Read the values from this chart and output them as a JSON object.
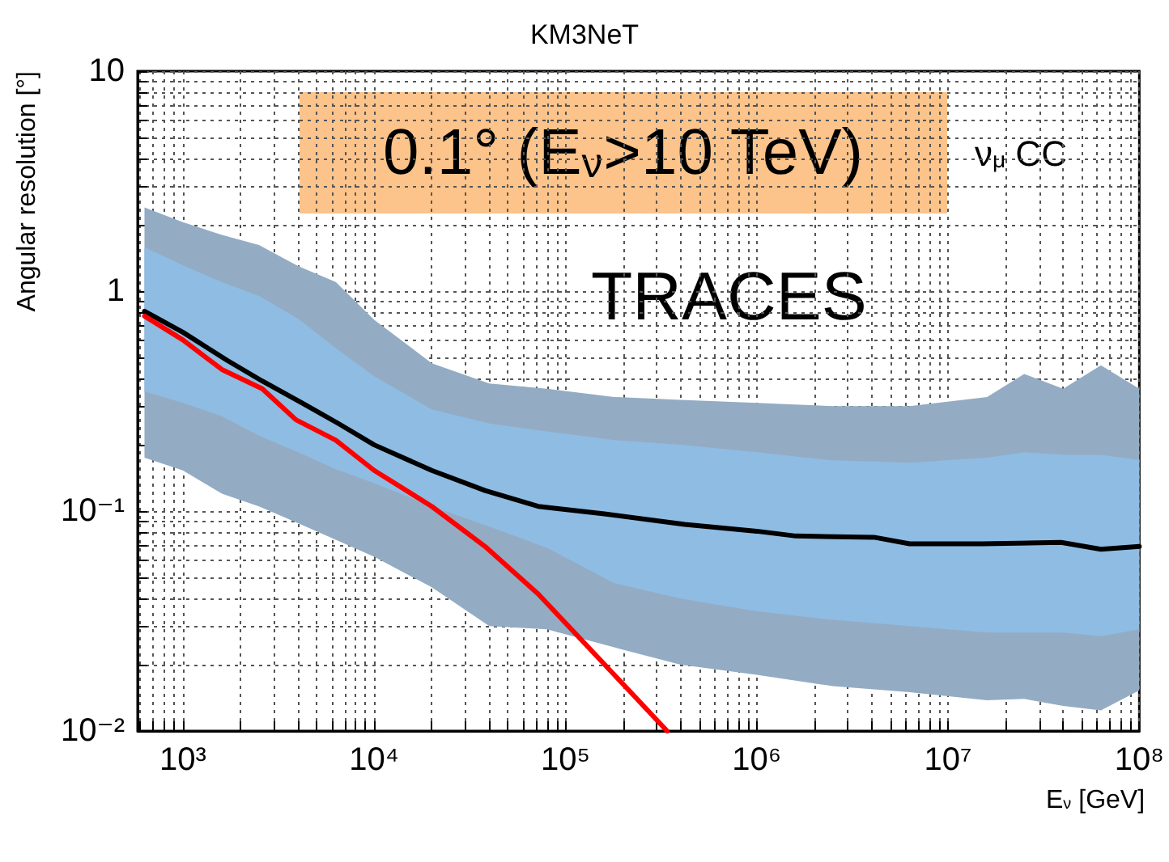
{
  "chart_data": {
    "type": "line",
    "title": "KM3NeT",
    "xlabel": "E$_{ν}$ [GeV]",
    "ylabel": "Angular resolution [°]",
    "log": "xy",
    "grid": true,
    "annotations": [
      "0.1° (E$_{ν}$>10 TeV)",
      "ν$_{μ}$ CC",
      "TRACES"
    ],
    "xlim": [
      580,
      100000000
    ],
    "ylim": [
      0.01,
      10
    ],
    "xticks": [
      {
        "value": 600,
        "label": null
      },
      {
        "value": 700,
        "label": null
      },
      {
        "value": 800,
        "label": null
      },
      {
        "value": 900,
        "label": null
      },
      {
        "value": 1000,
        "label": "10³"
      },
      {
        "value": 2000,
        "label": null
      },
      {
        "value": 3000,
        "label": null
      },
      {
        "value": 4000,
        "label": null
      },
      {
        "value": 5000,
        "label": null
      },
      {
        "value": 6000,
        "label": null
      },
      {
        "value": 7000,
        "label": null
      },
      {
        "value": 8000,
        "label": null
      },
      {
        "value": 9000,
        "label": null
      },
      {
        "value": 10000,
        "label": "10⁴"
      },
      {
        "value": 20000,
        "label": null
      },
      {
        "value": 30000,
        "label": null
      },
      {
        "value": 40000,
        "label": null
      },
      {
        "value": 50000,
        "label": null
      },
      {
        "value": 60000,
        "label": null
      },
      {
        "value": 70000,
        "label": null
      },
      {
        "value": 80000,
        "label": null
      },
      {
        "value": 90000,
        "label": null
      },
      {
        "value": 100000,
        "label": "10⁵"
      },
      {
        "value": 200000,
        "label": null
      },
      {
        "value": 300000,
        "label": null
      },
      {
        "value": 400000,
        "label": null
      },
      {
        "value": 500000,
        "label": null
      },
      {
        "value": 600000,
        "label": null
      },
      {
        "value": 700000,
        "label": null
      },
      {
        "value": 800000,
        "label": null
      },
      {
        "value": 900000,
        "label": null
      },
      {
        "value": 1000000,
        "label": "10⁶"
      },
      {
        "value": 2000000,
        "label": null
      },
      {
        "value": 3000000,
        "label": null
      },
      {
        "value": 4000000,
        "label": null
      },
      {
        "value": 5000000,
        "label": null
      },
      {
        "value": 6000000,
        "label": null
      },
      {
        "value": 7000000,
        "label": null
      },
      {
        "value": 8000000,
        "label": null
      },
      {
        "value": 9000000,
        "label": null
      },
      {
        "value": 10000000,
        "label": "10⁷"
      },
      {
        "value": 20000000,
        "label": null
      },
      {
        "value": 30000000,
        "label": null
      },
      {
        "value": 40000000,
        "label": null
      },
      {
        "value": 50000000,
        "label": null
      },
      {
        "value": 60000000,
        "label": null
      },
      {
        "value": 70000000,
        "label": null
      },
      {
        "value": 80000000,
        "label": null
      },
      {
        "value": 90000000,
        "label": null
      },
      {
        "value": 100000000,
        "label": "10⁸"
      }
    ],
    "yticks": [
      {
        "value": 0.01,
        "label": "10⁻²"
      },
      {
        "value": 0.02,
        "label": null
      },
      {
        "value": 0.03,
        "label": null
      },
      {
        "value": 0.04,
        "label": null
      },
      {
        "value": 0.05,
        "label": null
      },
      {
        "value": 0.06,
        "label": null
      },
      {
        "value": 0.07,
        "label": null
      },
      {
        "value": 0.08,
        "label": null
      },
      {
        "value": 0.09,
        "label": null
      },
      {
        "value": 0.1,
        "label": "10⁻¹"
      },
      {
        "value": 0.2,
        "label": null
      },
      {
        "value": 0.3,
        "label": null
      },
      {
        "value": 0.4,
        "label": null
      },
      {
        "value": 0.5,
        "label": null
      },
      {
        "value": 0.6,
        "label": null
      },
      {
        "value": 0.7,
        "label": null
      },
      {
        "value": 0.8,
        "label": null
      },
      {
        "value": 0.9,
        "label": null
      },
      1,
      {
        "value": 2,
        "label": null
      },
      {
        "value": 3,
        "label": null
      },
      {
        "value": 4,
        "label": null
      },
      {
        "value": 5,
        "label": null
      },
      {
        "value": 6,
        "label": null
      },
      {
        "value": 7,
        "label": null
      },
      {
        "value": 8,
        "label": null
      },
      {
        "value": 9,
        "label": null
      },
      10
    ],
    "series": [
      {
        "type": "area",
        "color": "#93acc4",
        "x": [
          630,
          1000,
          1600,
          2500,
          4000,
          6300,
          10000,
          20000,
          40000,
          80000,
          180000,
          400000,
          1000000,
          2500000,
          6300000,
          16000000,
          25000000,
          40000000,
          63000000,
          100000000
        ],
        "values": [
          null,
          null,
          null,
          null,
          null,
          null,
          null,
          null,
          null,
          null,
          null,
          null,
          null,
          null,
          null,
          null,
          null,
          null,
          null,
          null
        ],
        "lower": [
          0.175,
          0.153,
          0.12,
          0.105,
          0.088,
          0.074,
          0.062,
          0.045,
          0.03,
          0.029,
          0.024,
          0.02,
          0.018,
          0.016,
          0.015,
          0.0138,
          0.014,
          0.013,
          0.0124,
          0.0153
        ],
        "upper": [
          2.4,
          2.06,
          1.8,
          1.62,
          1.3,
          1.1,
          0.74,
          0.47,
          0.38,
          0.36,
          0.33,
          0.32,
          0.31,
          0.3,
          0.3,
          0.33,
          0.42,
          0.36,
          0.46,
          0.36
        ]
      },
      {
        "type": "area",
        "color": "#8fbce2",
        "x": [
          630,
          1000,
          1600,
          2500,
          4000,
          6300,
          10000,
          20000,
          40000,
          80000,
          180000,
          400000,
          1000000,
          2500000,
          6300000,
          16000000,
          25000000,
          40000000,
          63000000,
          100000000
        ],
        "values": [
          null,
          null,
          null,
          null,
          null,
          null,
          null,
          null,
          null,
          null,
          null,
          null,
          null,
          null,
          null,
          null,
          null,
          null,
          null,
          null
        ],
        "lower": [
          0.35,
          0.31,
          0.27,
          0.22,
          0.185,
          0.155,
          0.134,
          0.105,
          0.085,
          0.068,
          0.047,
          0.04,
          0.035,
          0.032,
          0.03,
          0.028,
          0.028,
          0.028,
          0.027,
          0.029
        ],
        "upper": [
          1.58,
          1.31,
          1.1,
          0.95,
          0.75,
          0.55,
          0.41,
          0.29,
          0.25,
          0.23,
          0.21,
          0.2,
          0.185,
          0.17,
          0.166,
          0.175,
          0.185,
          0.18,
          0.18,
          0.171
        ]
      },
      {
        "color": "#000000",
        "x": [
          630,
          1000,
          1700,
          2600,
          4200,
          6500,
          10000,
          20000,
          38000,
          72000,
          160000,
          420000,
          1000000,
          1600000,
          4100000,
          6300000,
          15000000,
          39000000,
          63000000,
          100000000
        ],
        "values": [
          0.81,
          0.65,
          0.485,
          0.39,
          0.31,
          0.25,
          0.2,
          0.153,
          0.124,
          0.105,
          0.097,
          0.087,
          0.081,
          0.077,
          0.076,
          0.071,
          0.071,
          0.072,
          0.067,
          0.069
        ]
      },
      {
        "color": "#ff0000",
        "x": [
          630,
          1000,
          1600,
          2600,
          3900,
          6300,
          10000,
          20000,
          38000,
          72000,
          180000,
          340000
        ],
        "values": [
          0.77,
          0.6,
          0.44,
          0.36,
          0.26,
          0.21,
          0.153,
          0.105,
          0.069,
          0.042,
          0.018,
          0.01
        ]
      }
    ]
  }
}
